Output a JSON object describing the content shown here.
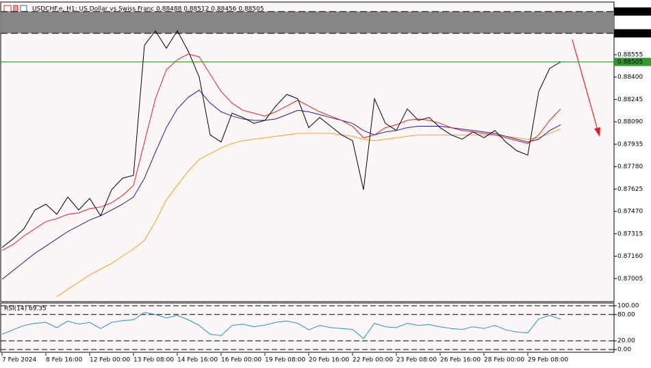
{
  "chart_data": [
    {
      "type": "line",
      "title": "USDCHF.e, H1: US Dollar vs Swiss Franc 0.88488 0.88512 0.88456 0.88505",
      "categories": [
        "7 Feb 2024",
        null,
        null,
        null,
        "8 Feb 16:00",
        null,
        null,
        null,
        "12 Feb 00:00",
        null,
        null,
        null,
        "13 Feb 08:00",
        null,
        null,
        null,
        "14 Feb 16:00",
        null,
        null,
        null,
        "16 Feb 00:00",
        null,
        null,
        null,
        "19 Feb 08:00",
        null,
        null,
        null,
        "20 Feb 16:00",
        null,
        null,
        null,
        "22 Feb 00:00",
        null,
        null,
        null,
        "23 Feb 08:00",
        null,
        null,
        null,
        "26 Feb 16:00",
        null,
        null,
        null,
        "28 Feb 00:00",
        null,
        null,
        null,
        "29 Feb 08:00",
        null,
        null,
        null
      ],
      "series": [
        {
          "color": "#f0a020",
          "values": [
            null,
            null,
            null,
            null,
            null,
            0.8688,
            0.8693,
            0.8698,
            0.8703,
            0.8707,
            0.8711,
            0.8716,
            0.8721,
            0.8727,
            0.874,
            0.8755,
            0.8765,
            0.8775,
            0.8783,
            0.8787,
            0.8791,
            0.8794,
            0.8796,
            0.8797,
            0.8798,
            0.8799,
            0.88,
            0.8801,
            0.8801,
            0.8801,
            0.8801,
            0.88,
            0.8799,
            0.8797,
            0.8796,
            0.8797,
            0.8798,
            0.8799,
            0.88,
            0.88,
            0.88,
            0.88,
            0.88,
            0.88,
            0.88,
            0.88,
            0.8799,
            0.8798,
            0.8797,
            0.8798,
            0.8801,
            0.8804
          ]
        },
        {
          "color": "#1c1ca8",
          "values": [
            0.87,
            0.8706,
            0.8712,
            0.8718,
            0.8723,
            0.8728,
            0.8733,
            0.8737,
            0.8741,
            0.8744,
            0.8748,
            0.8752,
            0.8757,
            0.877,
            0.8788,
            0.8805,
            0.8818,
            0.8826,
            0.8831,
            0.8822,
            0.8816,
            0.8813,
            0.8811,
            0.881,
            0.881,
            0.8811,
            0.8814,
            0.8817,
            0.8816,
            0.8814,
            0.8812,
            0.881,
            0.8808,
            0.8803,
            0.88,
            0.8802,
            0.8803,
            0.8805,
            0.8806,
            0.8806,
            0.8806,
            0.8805,
            0.8804,
            0.8803,
            0.8802,
            0.8801,
            0.8799,
            0.8797,
            0.8795,
            0.8797,
            0.8803,
            0.8807
          ]
        },
        {
          "color": "#e02020",
          "values": [
            0.872,
            0.8724,
            0.873,
            0.8735,
            0.874,
            0.8742,
            0.8745,
            0.8746,
            0.8749,
            0.875,
            0.8753,
            0.8758,
            0.8765,
            0.8795,
            0.8825,
            0.8845,
            0.8852,
            0.8856,
            0.8854,
            0.8842,
            0.883,
            0.8822,
            0.8817,
            0.8815,
            0.8813,
            0.8816,
            0.882,
            0.8824,
            0.882,
            0.8816,
            0.8813,
            0.881,
            0.8806,
            0.8798,
            0.88,
            0.8805,
            0.8807,
            0.881,
            0.8811,
            0.881,
            0.8808,
            0.8805,
            0.8803,
            0.8802,
            0.8801,
            0.88,
            0.8798,
            0.8796,
            0.8794,
            0.88,
            0.881,
            0.8818
          ]
        },
        {
          "color": "#000000",
          "values": [
            0.8722,
            0.8728,
            0.8735,
            0.8748,
            0.8752,
            0.8745,
            0.8757,
            0.8748,
            0.8756,
            0.8744,
            0.8762,
            0.877,
            0.8772,
            0.8862,
            0.8872,
            0.886,
            0.8872,
            0.8858,
            0.884,
            0.88,
            0.8795,
            0.8815,
            0.8812,
            0.8808,
            0.881,
            0.882,
            0.8828,
            0.8825,
            0.8805,
            0.8812,
            0.8806,
            0.88,
            0.8796,
            0.8762,
            0.8825,
            0.8808,
            0.8803,
            0.8818,
            0.881,
            0.8812,
            0.8805,
            0.88,
            0.8797,
            0.8802,
            0.8798,
            0.8803,
            0.8795,
            0.8789,
            0.8786,
            0.883,
            0.8846,
            0.88505
          ]
        }
      ],
      "ylim": [
        0.8685,
        0.8891
      ],
      "yticks": [
        0.88555,
        {
          "value": 0.884,
          "label": "0.88400"
        },
        0.88245,
        {
          "value": 0.8809,
          "label": "0.88090"
        },
        0.87935,
        {
          "value": 0.8778,
          "label": "0.87780"
        },
        0.87625,
        {
          "value": 0.8747,
          "label": "0.87470"
        },
        0.87315,
        {
          "value": 0.8716,
          "label": "0.87160"
        },
        0.87005
      ],
      "levels": [
        {
          "value": 0.88854,
          "label": "0.88854",
          "color": "#000000"
        },
        {
          "value": 0.88703,
          "label": "0.88703",
          "color": "#000000"
        },
        {
          "value": 0.88505,
          "label": "0.88505",
          "color": "#2e9a2e"
        }
      ],
      "zone_color": "#808080"
    },
    {
      "type": "line",
      "title": "RSI(14) 69.35",
      "series": [
        {
          "color": "#1e90c8",
          "values": [
            35,
            45,
            55,
            60,
            62,
            50,
            65,
            58,
            62,
            48,
            62,
            66,
            68,
            85,
            80,
            72,
            78,
            68,
            55,
            35,
            32,
            55,
            58,
            52,
            56,
            62,
            65,
            60,
            45,
            55,
            50,
            48,
            46,
            25,
            60,
            52,
            50,
            60,
            55,
            57,
            52,
            48,
            46,
            52,
            48,
            55,
            45,
            40,
            38,
            70,
            78,
            69.35
          ]
        }
      ],
      "ylim": [
        0,
        100
      ],
      "yticks": [
        {
          "value": 100,
          "label": "100.00"
        },
        {
          "value": 80,
          "label": "80.00"
        },
        {
          "value": 20,
          "label": "20.00"
        },
        {
          "value": 0,
          "label": "0.00"
        }
      ]
    }
  ]
}
